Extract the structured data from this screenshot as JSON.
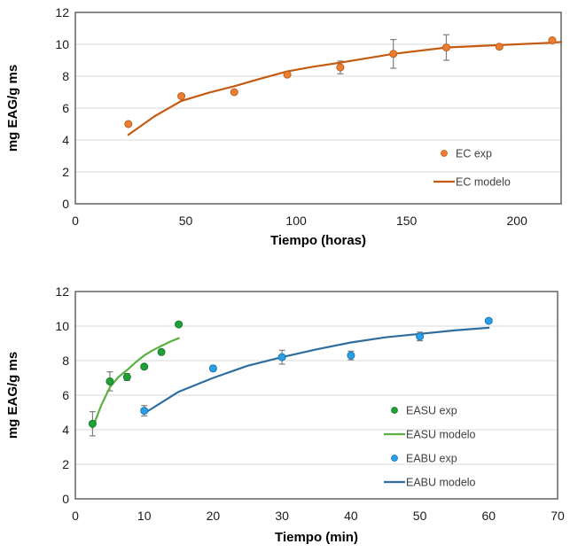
{
  "figure": {
    "background": "#ffffff"
  },
  "styles": {
    "grid_color": "#DADADA",
    "axis_border_color": "#595959",
    "tick_label_color": "#1a1a1a",
    "error_bar_color": "#7F7F7F",
    "legend_text_color": "#404040"
  },
  "chart_data": [
    {
      "type": "scatter",
      "title": "",
      "xlabel": "Tiempo (horas)",
      "ylabel": "mg EAG/g ms",
      "xlim": [
        0,
        220
      ],
      "ylim": [
        0,
        12
      ],
      "xticks": [
        0,
        50,
        100,
        150,
        200
      ],
      "yticks": [
        0,
        2,
        4,
        6,
        8,
        10,
        12
      ],
      "grid": "horizontal",
      "legend_position": "inside-right-middle",
      "series": [
        {
          "name": "EC exp",
          "kind": "points",
          "color": "#ED7D31",
          "edge_color": "#BC5F1F",
          "x": [
            24,
            48,
            72,
            96,
            120,
            144,
            168,
            192,
            216
          ],
          "y": [
            5.0,
            6.75,
            7.0,
            8.1,
            8.55,
            9.4,
            9.8,
            9.85,
            10.25
          ],
          "yerr": [
            0,
            0,
            0,
            0,
            0.4,
            0.9,
            0.8,
            0,
            0
          ]
        },
        {
          "name": "EC modelo",
          "kind": "line",
          "color": "#C55A11",
          "x": [
            24,
            36,
            48,
            60,
            72,
            84,
            96,
            108,
            120,
            144,
            168,
            192,
            216,
            220
          ],
          "y": [
            4.33,
            5.5,
            6.45,
            6.95,
            7.37,
            7.85,
            8.3,
            8.6,
            8.85,
            9.4,
            9.8,
            9.95,
            10.1,
            10.15
          ]
        }
      ]
    },
    {
      "type": "scatter",
      "title": "",
      "xlabel": "Tiempo (min)",
      "ylabel": "mg EAG/g ms",
      "xlim": [
        0,
        70
      ],
      "ylim": [
        0,
        12
      ],
      "xticks": [
        0,
        10,
        20,
        30,
        40,
        50,
        60,
        70
      ],
      "yticks": [
        0,
        2,
        4,
        6,
        8,
        10,
        12
      ],
      "grid": "horizontal",
      "legend_position": "inside-right-middle",
      "series": [
        {
          "name": "EASU exp",
          "kind": "points",
          "color": "#21A038",
          "edge_color": "#157A2B",
          "x": [
            2.5,
            5,
            7.5,
            10,
            12.5,
            15
          ],
          "y": [
            4.35,
            6.8,
            7.05,
            7.65,
            8.5,
            10.1
          ],
          "yerr": [
            0.7,
            0.55,
            0.2,
            0,
            0,
            0
          ]
        },
        {
          "name": "EASU modelo",
          "kind": "line",
          "color": "#5BB043",
          "x": [
            2.5,
            3.75,
            5,
            6.25,
            7.5,
            8.75,
            10,
            11.25,
            12.5,
            13.75,
            15
          ],
          "y": [
            4.1,
            5.4,
            6.45,
            7.05,
            7.45,
            7.9,
            8.3,
            8.6,
            8.85,
            9.1,
            9.3
          ]
        },
        {
          "name": "EABU exp",
          "kind": "points",
          "color": "#29A0E6",
          "edge_color": "#1B77B5",
          "x": [
            10,
            20,
            30,
            40,
            50,
            60
          ],
          "y": [
            5.1,
            7.55,
            8.2,
            8.3,
            9.4,
            10.3
          ],
          "yerr": [
            0.3,
            0.15,
            0.4,
            0.25,
            0.25,
            0
          ]
        },
        {
          "name": "EABU modelo",
          "kind": "line",
          "color": "#2E6D9E",
          "x": [
            10,
            15,
            20,
            25,
            30,
            35,
            40,
            45,
            50,
            55,
            60
          ],
          "y": [
            4.95,
            6.2,
            7.0,
            7.7,
            8.2,
            8.65,
            9.05,
            9.35,
            9.55,
            9.75,
            9.9
          ]
        }
      ]
    }
  ]
}
